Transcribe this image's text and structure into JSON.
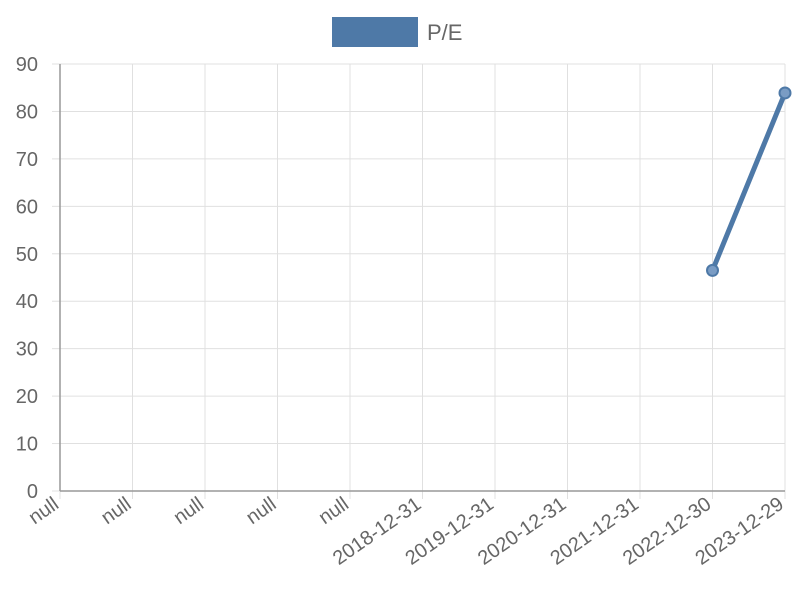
{
  "chart_data": {
    "type": "line",
    "title": "",
    "xlabel": "",
    "ylabel": "",
    "categories": [
      "null",
      "null",
      "null",
      "null",
      "null",
      "2018-12-31",
      "2019-12-31",
      "2020-12-31",
      "2021-12-31",
      "2022-12-30",
      "2023-12-29"
    ],
    "series": [
      {
        "name": "P/E",
        "color": "#4e79a7",
        "values": [
          null,
          null,
          null,
          null,
          null,
          null,
          null,
          null,
          null,
          46.5,
          83.9
        ]
      }
    ],
    "ylim": [
      0,
      90
    ],
    "yticks": [
      "0",
      "10",
      "20",
      "30",
      "40",
      "50",
      "60",
      "70",
      "80",
      "90"
    ],
    "grid": true,
    "legend": "top-center"
  }
}
